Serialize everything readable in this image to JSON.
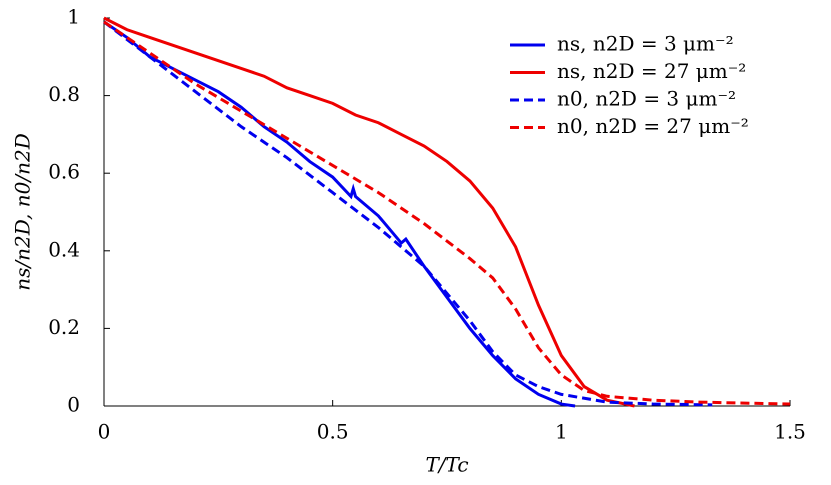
{
  "chart_data": {
    "type": "line",
    "x_label": "T/Tc",
    "y_label": "ns/n2D, n0/n2D",
    "xlim": [
      0,
      1.5
    ],
    "ylim": [
      0,
      1
    ],
    "xticks": [
      0,
      0.5,
      1,
      1.5
    ],
    "yticks": [
      0,
      0.2,
      0.4,
      0.6,
      0.8,
      1
    ],
    "legend": "top-right",
    "series": [
      {
        "name": "ns, n2D = 3 μm⁻²",
        "color": "#0000ee",
        "style": "solid",
        "x": [
          0,
          0.05,
          0.1,
          0.15,
          0.2,
          0.25,
          0.3,
          0.35,
          0.4,
          0.45,
          0.5,
          0.54,
          0.545,
          0.55,
          0.6,
          0.65,
          0.66,
          0.7,
          0.75,
          0.8,
          0.85,
          0.9,
          0.95,
          1.0,
          1.03
        ],
        "values": [
          0.99,
          0.95,
          0.9,
          0.87,
          0.84,
          0.81,
          0.77,
          0.72,
          0.68,
          0.63,
          0.59,
          0.54,
          0.56,
          0.54,
          0.49,
          0.42,
          0.43,
          0.36,
          0.28,
          0.2,
          0.13,
          0.07,
          0.03,
          0.005,
          0
        ]
      },
      {
        "name": "ns, n2D = 27 μm⁻²",
        "color": "#ee0000",
        "style": "solid",
        "x": [
          0,
          0.05,
          0.1,
          0.15,
          0.2,
          0.25,
          0.3,
          0.35,
          0.4,
          0.45,
          0.5,
          0.55,
          0.6,
          0.65,
          0.7,
          0.75,
          0.8,
          0.85,
          0.9,
          0.95,
          1.0,
          1.05,
          1.1,
          1.16
        ],
        "values": [
          1,
          0.97,
          0.95,
          0.93,
          0.91,
          0.89,
          0.87,
          0.85,
          0.82,
          0.8,
          0.78,
          0.75,
          0.73,
          0.7,
          0.67,
          0.63,
          0.58,
          0.51,
          0.41,
          0.26,
          0.13,
          0.05,
          0.015,
          0
        ]
      },
      {
        "name": "n0, n2D = 3 μm⁻²",
        "color": "#0000ee",
        "style": "dashed",
        "x": [
          0,
          0.1,
          0.2,
          0.3,
          0.4,
          0.5,
          0.6,
          0.7,
          0.8,
          0.85,
          0.9,
          0.95,
          1.0,
          1.1,
          1.2,
          1.33
        ],
        "values": [
          0.99,
          0.9,
          0.81,
          0.72,
          0.64,
          0.55,
          0.46,
          0.36,
          0.22,
          0.14,
          0.08,
          0.05,
          0.03,
          0.01,
          0.005,
          0.003
        ]
      },
      {
        "name": "n0, n2D = 27 μm⁻²",
        "color": "#ee0000",
        "style": "dashed",
        "x": [
          0,
          0.1,
          0.2,
          0.3,
          0.4,
          0.5,
          0.6,
          0.7,
          0.8,
          0.85,
          0.9,
          0.95,
          1.0,
          1.05,
          1.1,
          1.2,
          1.3,
          1.5
        ],
        "values": [
          0.99,
          0.91,
          0.83,
          0.76,
          0.69,
          0.62,
          0.55,
          0.47,
          0.38,
          0.33,
          0.25,
          0.15,
          0.08,
          0.04,
          0.025,
          0.015,
          0.01,
          0.005
        ]
      }
    ]
  }
}
